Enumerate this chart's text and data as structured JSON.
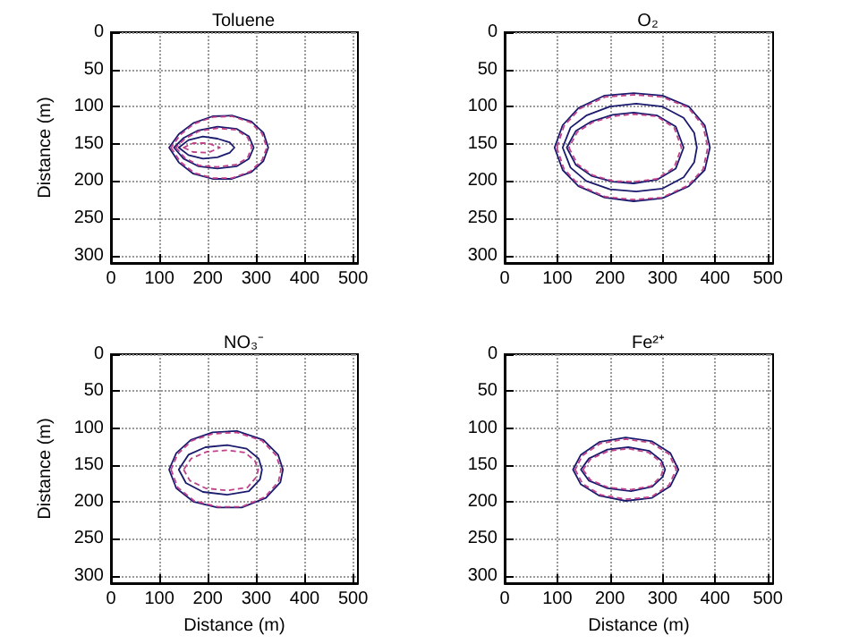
{
  "chart_data": [
    {
      "type": "line",
      "title": "Toluene",
      "ylabel": "Distance (m)",
      "xlim": [
        0,
        510
      ],
      "ylim": [
        310,
        0
      ],
      "xticks": [
        0,
        100,
        200,
        300,
        400,
        500
      ],
      "yticks": [
        0,
        50,
        100,
        150,
        200,
        250,
        300
      ],
      "grid": true
    },
    {
      "type": "line",
      "title": "O₂",
      "xlim": [
        0,
        510
      ],
      "ylim": [
        310,
        0
      ],
      "xticks": [
        0,
        100,
        200,
        300,
        400,
        500
      ],
      "yticks": [
        0,
        50,
        100,
        150,
        200,
        250,
        300
      ],
      "grid": true
    },
    {
      "type": "line",
      "title": "NO₃⁻",
      "xlabel": "Distance (m)",
      "ylabel": "Distance (m)",
      "xlim": [
        0,
        510
      ],
      "ylim": [
        310,
        0
      ],
      "xticks": [
        0,
        100,
        200,
        300,
        400,
        500
      ],
      "yticks": [
        0,
        50,
        100,
        150,
        200,
        250,
        300
      ],
      "grid": true
    },
    {
      "type": "line",
      "title": "Fe²⁺",
      "xlabel": "Distance (m)",
      "xlim": [
        0,
        510
      ],
      "ylim": [
        310,
        0
      ],
      "xticks": [
        0,
        100,
        200,
        300,
        400,
        500
      ],
      "yticks": [
        0,
        50,
        100,
        150,
        200,
        250,
        300
      ],
      "grid": true
    }
  ]
}
